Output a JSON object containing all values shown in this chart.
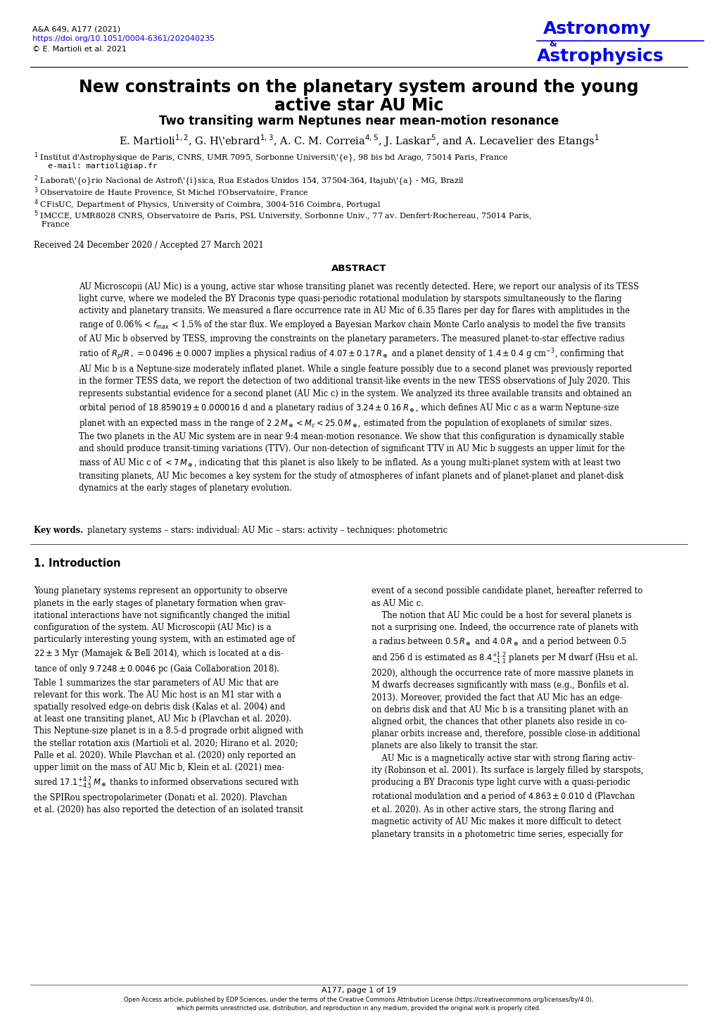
{
  "background_color": "#ffffff",
  "header_left_line1": "A&A 649, A177 (2021)",
  "header_left_line2": "https://doi.org/10.1051/0004-6361/202040235",
  "header_left_line3": "© E. Martioli et al. 2021",
  "journal_color": "#0000FF",
  "title_line1": "New constraints on the planetary system around the young",
  "title_line2": "active star AU Mic",
  "subtitle": "Two transiting warm Neptunes near mean-motion resonance",
  "received": "Received 24 December 2020 / Accepted 27 March 2021",
  "abstract_title": "ABSTRACT",
  "keywords_bold": "Key words.",
  "keywords_rest": "   planetary systems – stars: individual: AU Mic – stars: activity – techniques: photometric",
  "footer_text": "A177, page 1 of 19",
  "footer_license": "Open Access article, published by EDP Sciences, under the terms of the Creative Commons Attribution License (https://creativecommons.org/licenses/by/4.0),\nwhich permits unrestricted use, distribution, and reproduction in any medium, provided the original work is properly cited."
}
